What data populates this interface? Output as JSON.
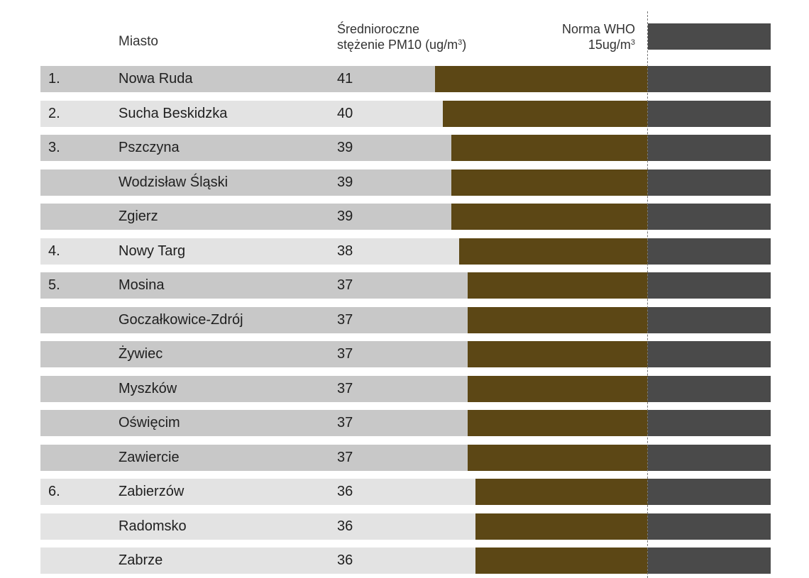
{
  "colors": {
    "row_dark": "#c8c8c8",
    "row_light": "#e3e3e3",
    "exceed_bar": "#5c4715",
    "norm_bar": "#4a4a4a",
    "who_line": "#777777"
  },
  "headers": {
    "city": "Miasto",
    "value_line1": "Średnioroczne",
    "value_line2": "stężenie PM10 (ug/m",
    "value_sup": "3",
    "value_suffix": ")",
    "who_line1": "Norma WHO",
    "who_line2": "15ug/m",
    "who_sup": "3"
  },
  "chart_data": {
    "type": "bar",
    "orientation": "horizontal",
    "who_norm": 15,
    "columns": [
      "Miasto",
      "Średnioroczne stężenie PM10 (ug/m3)",
      "Norma WHO 15ug/m3"
    ],
    "rows": [
      {
        "rank": "1.",
        "city": "Nowa Ruda",
        "value": 41,
        "shade": "dark"
      },
      {
        "rank": "2.",
        "city": "Sucha Beskidzka",
        "value": 40,
        "shade": "light"
      },
      {
        "rank": "3.",
        "city": "Pszczyna",
        "value": 39,
        "shade": "dark"
      },
      {
        "rank": "",
        "city": "Wodzisław Śląski",
        "value": 39,
        "shade": "dark"
      },
      {
        "rank": "",
        "city": "Zgierz",
        "value": 39,
        "shade": "dark"
      },
      {
        "rank": "4.",
        "city": "Nowy Targ",
        "value": 38,
        "shade": "light"
      },
      {
        "rank": "5.",
        "city": "Mosina",
        "value": 37,
        "shade": "dark"
      },
      {
        "rank": "",
        "city": "Goczałkowice-Zdrój",
        "value": 37,
        "shade": "dark"
      },
      {
        "rank": "",
        "city": "Żywiec",
        "value": 37,
        "shade": "dark"
      },
      {
        "rank": "",
        "city": "Myszków",
        "value": 37,
        "shade": "dark"
      },
      {
        "rank": "",
        "city": "Oświęcim",
        "value": 37,
        "shade": "dark"
      },
      {
        "rank": "",
        "city": "Zawiercie",
        "value": 37,
        "shade": "dark"
      },
      {
        "rank": "6.",
        "city": "Zabierzów",
        "value": 36,
        "shade": "light"
      },
      {
        "rank": "",
        "city": "Radomsko",
        "value": 36,
        "shade": "light"
      },
      {
        "rank": "",
        "city": "Zabrze",
        "value": 36,
        "shade": "light"
      }
    ]
  }
}
